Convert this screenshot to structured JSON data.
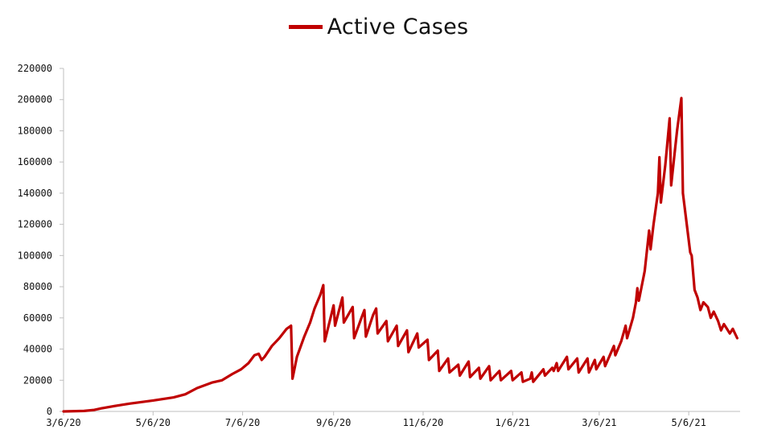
{
  "chart_data": {
    "type": "line",
    "legend": "top-center",
    "grid": false,
    "series": [
      {
        "name": "Active Cases",
        "color": "#c00000",
        "points": [
          [
            "2020-03-06",
            0
          ],
          [
            "2020-03-20",
            300
          ],
          [
            "2020-03-27",
            1000
          ],
          [
            "2020-04-01",
            2000
          ],
          [
            "2020-04-10",
            3500
          ],
          [
            "2020-04-20",
            5000
          ],
          [
            "2020-05-06",
            7000
          ],
          [
            "2020-05-20",
            9000
          ],
          [
            "2020-05-28",
            11000
          ],
          [
            "2020-06-05",
            15000
          ],
          [
            "2020-06-15",
            18500
          ],
          [
            "2020-06-22",
            20000
          ],
          [
            "2020-06-29",
            24000
          ],
          [
            "2020-07-05",
            27000
          ],
          [
            "2020-07-10",
            31000
          ],
          [
            "2020-07-14",
            36000
          ],
          [
            "2020-07-17",
            37000
          ],
          [
            "2020-07-19",
            33000
          ],
          [
            "2020-07-21",
            35000
          ],
          [
            "2020-07-26",
            42000
          ],
          [
            "2020-07-31",
            47000
          ],
          [
            "2020-08-05",
            53000
          ],
          [
            "2020-08-08",
            55000
          ],
          [
            "2020-08-09",
            21000
          ],
          [
            "2020-08-12",
            35000
          ],
          [
            "2020-08-17",
            48000
          ],
          [
            "2020-08-21",
            57000
          ],
          [
            "2020-08-24",
            66000
          ],
          [
            "2020-08-28",
            75000
          ],
          [
            "2020-08-30",
            81000
          ],
          [
            "2020-08-31",
            45000
          ],
          [
            "2020-09-06",
            68000
          ],
          [
            "2020-09-07",
            55000
          ],
          [
            "2020-09-12",
            73000
          ],
          [
            "2020-09-13",
            57000
          ],
          [
            "2020-09-19",
            67000
          ],
          [
            "2020-09-20",
            47000
          ],
          [
            "2020-09-25",
            60000
          ],
          [
            "2020-09-27",
            65000
          ],
          [
            "2020-09-28",
            48000
          ],
          [
            "2020-10-03",
            62000
          ],
          [
            "2020-10-05",
            66000
          ],
          [
            "2020-10-06",
            50000
          ],
          [
            "2020-10-12",
            58000
          ],
          [
            "2020-10-13",
            45000
          ],
          [
            "2020-10-19",
            55000
          ],
          [
            "2020-10-20",
            42000
          ],
          [
            "2020-10-26",
            52000
          ],
          [
            "2020-10-27",
            38000
          ],
          [
            "2020-11-02",
            50000
          ],
          [
            "2020-11-03",
            41000
          ],
          [
            "2020-11-09",
            46000
          ],
          [
            "2020-11-10",
            33000
          ],
          [
            "2020-11-16",
            39000
          ],
          [
            "2020-11-17",
            26000
          ],
          [
            "2020-11-23",
            34000
          ],
          [
            "2020-11-24",
            25000
          ],
          [
            "2020-11-30",
            30000
          ],
          [
            "2020-12-01",
            23000
          ],
          [
            "2020-12-07",
            32000
          ],
          [
            "2020-12-08",
            22000
          ],
          [
            "2020-12-14",
            28000
          ],
          [
            "2020-12-15",
            21000
          ],
          [
            "2020-12-21",
            29000
          ],
          [
            "2020-12-22",
            20000
          ],
          [
            "2020-12-28",
            26000
          ],
          [
            "2020-12-29",
            20000
          ],
          [
            "2021-01-05",
            26000
          ],
          [
            "2021-01-06",
            20000
          ],
          [
            "2021-01-12",
            25000
          ],
          [
            "2021-01-13",
            19000
          ],
          [
            "2021-01-18",
            21000
          ],
          [
            "2021-01-19",
            25000
          ],
          [
            "2021-01-20",
            19000
          ],
          [
            "2021-01-27",
            27000
          ],
          [
            "2021-01-28",
            23000
          ],
          [
            "2021-02-02",
            28000
          ],
          [
            "2021-02-03",
            26000
          ],
          [
            "2021-02-05",
            31000
          ],
          [
            "2021-02-06",
            26000
          ],
          [
            "2021-02-12",
            35000
          ],
          [
            "2021-02-13",
            27000
          ],
          [
            "2021-02-19",
            34000
          ],
          [
            "2021-02-20",
            25000
          ],
          [
            "2021-02-26",
            34000
          ],
          [
            "2021-02-27",
            25000
          ],
          [
            "2021-03-03",
            33000
          ],
          [
            "2021-03-04",
            27000
          ],
          [
            "2021-03-09",
            35000
          ],
          [
            "2021-03-10",
            29000
          ],
          [
            "2021-03-16",
            42000
          ],
          [
            "2021-03-17",
            36000
          ],
          [
            "2021-03-21",
            45000
          ],
          [
            "2021-03-24",
            55000
          ],
          [
            "2021-03-25",
            47000
          ],
          [
            "2021-03-29",
            60000
          ],
          [
            "2021-03-31",
            70000
          ],
          [
            "2021-04-01",
            79000
          ],
          [
            "2021-04-02",
            71000
          ],
          [
            "2021-04-06",
            90000
          ],
          [
            "2021-04-09",
            116000
          ],
          [
            "2021-04-10",
            104000
          ],
          [
            "2021-04-12",
            120000
          ],
          [
            "2021-04-15",
            140000
          ],
          [
            "2021-04-16",
            163000
          ],
          [
            "2021-04-17",
            134000
          ],
          [
            "2021-04-20",
            158000
          ],
          [
            "2021-04-23",
            188000
          ],
          [
            "2021-04-24",
            145000
          ],
          [
            "2021-04-28",
            180000
          ],
          [
            "2021-05-01",
            201000
          ],
          [
            "2021-05-02",
            140000
          ],
          [
            "2021-05-04",
            125000
          ],
          [
            "2021-05-07",
            102000
          ],
          [
            "2021-05-08",
            100000
          ],
          [
            "2021-05-10",
            78000
          ],
          [
            "2021-05-12",
            73000
          ],
          [
            "2021-05-14",
            65000
          ],
          [
            "2021-05-16",
            70000
          ],
          [
            "2021-05-19",
            67000
          ],
          [
            "2021-05-21",
            60000
          ],
          [
            "2021-05-23",
            64000
          ],
          [
            "2021-05-26",
            58000
          ],
          [
            "2021-05-28",
            52000
          ],
          [
            "2021-05-30",
            56000
          ],
          [
            "2021-06-01",
            53000
          ],
          [
            "2021-06-03",
            50000
          ],
          [
            "2021-06-05",
            53000
          ],
          [
            "2021-06-08",
            47000
          ]
        ]
      }
    ],
    "x_ticks": [
      {
        "date": "2020-03-06",
        "label": "3/6/20"
      },
      {
        "date": "2020-05-06",
        "label": "5/6/20"
      },
      {
        "date": "2020-07-06",
        "label": "7/6/20"
      },
      {
        "date": "2020-09-06",
        "label": "9/6/20"
      },
      {
        "date": "2020-11-06",
        "label": "11/6/20"
      },
      {
        "date": "2021-01-06",
        "label": "1/6/21"
      },
      {
        "date": "2021-03-06",
        "label": "3/6/21"
      },
      {
        "date": "2021-05-06",
        "label": "5/6/21"
      }
    ],
    "xlim": [
      "2020-03-06",
      "2021-06-10"
    ],
    "y_ticks": [
      "0",
      "20000",
      "40000",
      "60000",
      "80000",
      "100000",
      "120000",
      "140000",
      "160000",
      "180000",
      "200000",
      "220000"
    ],
    "ylim": [
      0,
      220000
    ]
  }
}
